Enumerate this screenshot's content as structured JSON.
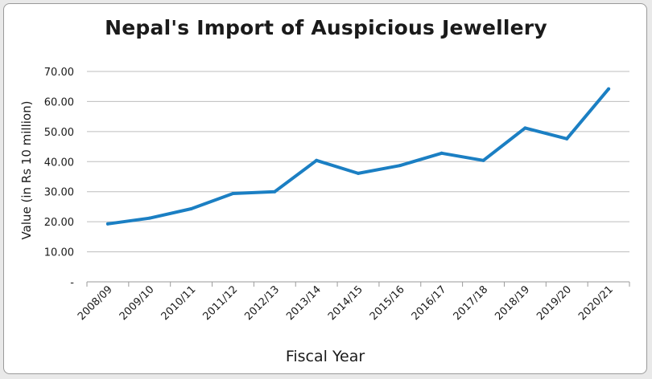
{
  "chart_data": {
    "type": "line",
    "title": "Nepal's Import of Auspicious Jewellery",
    "xlabel": "Fiscal Year",
    "ylabel": "Value (in Rs 10 million)",
    "categories": [
      "2008/09",
      "2009/10",
      "2010/11",
      "2011/12",
      "2012/13",
      "2013/14",
      "2014/15",
      "2015/16",
      "2016/17",
      "2017/18",
      "2018/19",
      "2019/20",
      "2020/21"
    ],
    "series": [
      {
        "values": [
          19.3,
          21.2,
          24.3,
          29.4,
          30.0,
          40.4,
          36.1,
          38.7,
          42.8,
          40.4,
          51.2,
          47.6,
          64.2
        ]
      }
    ],
    "ylim": [
      0,
      70
    ],
    "yticks": [
      "-",
      "10.00",
      "20.00",
      "30.00",
      "40.00",
      "50.00",
      "60.00",
      "70.00"
    ],
    "grid": "horizontal",
    "line_color": "#1b7fc3"
  }
}
